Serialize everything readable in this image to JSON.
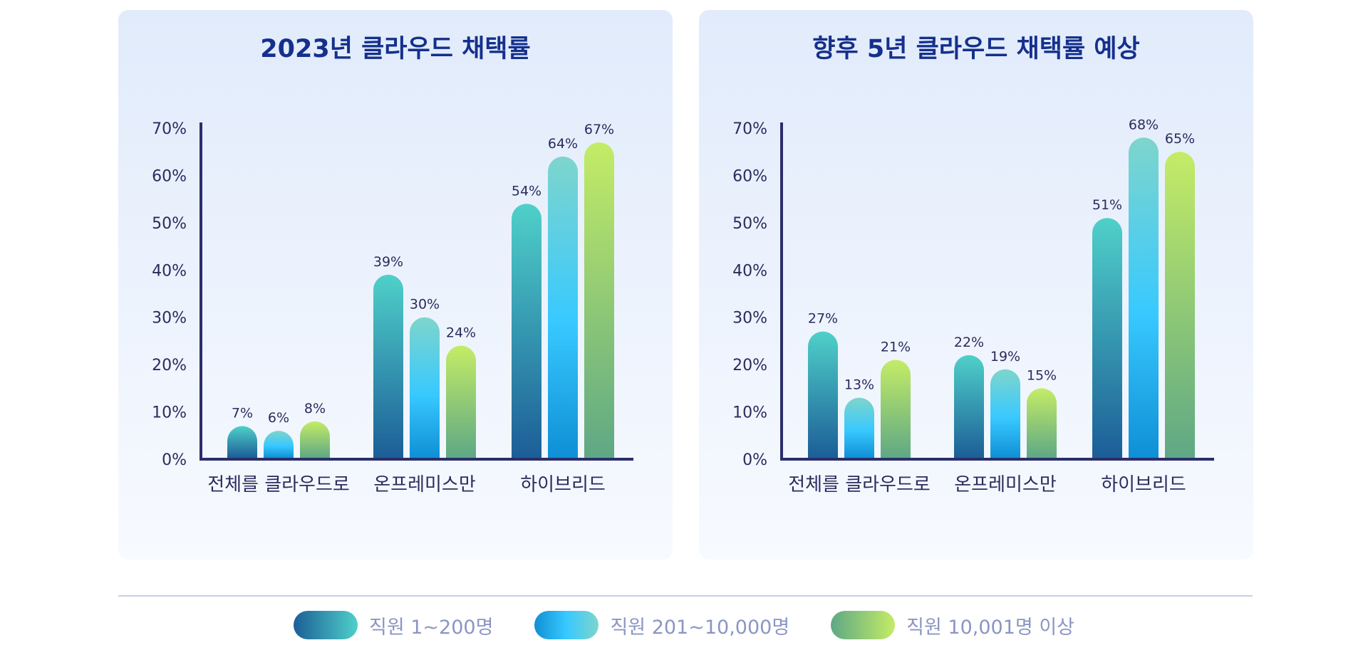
{
  "colors": {
    "s1": [
      "#1c5e97",
      "#4fd0c9"
    ],
    "s2": [
      "#0f8fd6",
      "#38c9ff",
      "#7ed5cc"
    ],
    "s3": [
      "#5ea885",
      "#c4ec66"
    ],
    "axis": "#2b2e6b",
    "title": "#15308c",
    "text": "#2a2c5c",
    "legend_text": "#8b95c4"
  },
  "legend": [
    {
      "label": "직원 1~200명"
    },
    {
      "label": "직원 201~10,000명"
    },
    {
      "label": "직원 10,001명 이상"
    }
  ],
  "chart_data": [
    {
      "type": "bar",
      "title": "2023년 클라우드 채택률",
      "categories": [
        "전체를 클라우드로",
        "온프레미스만",
        "하이브리드"
      ],
      "yticks": [
        "0%",
        "10%",
        "20%",
        "30%",
        "40%",
        "50%",
        "60%",
        "70%"
      ],
      "ylim": [
        0,
        70
      ],
      "grid": false,
      "legend_position": "bottom",
      "series": [
        {
          "values": [
            7,
            39,
            54
          ],
          "labels": [
            "7%",
            "39%",
            "54%"
          ]
        },
        {
          "values": [
            6,
            30,
            64
          ],
          "labels": [
            "6%",
            "30%",
            "64%"
          ]
        },
        {
          "values": [
            8,
            24,
            67
          ],
          "labels": [
            "8%",
            "24%",
            "67%"
          ]
        }
      ]
    },
    {
      "type": "bar",
      "title": "향후 5년 클라우드 채택률 예상",
      "categories": [
        "전체를 클라우드로",
        "온프레미스만",
        "하이브리드"
      ],
      "yticks": [
        "0%",
        "10%",
        "20%",
        "30%",
        "40%",
        "50%",
        "60%",
        "70%"
      ],
      "ylim": [
        0,
        70
      ],
      "grid": false,
      "legend_position": "bottom",
      "series": [
        {
          "values": [
            27,
            22,
            51
          ],
          "labels": [
            "27%",
            "22%",
            "51%"
          ]
        },
        {
          "values": [
            13,
            19,
            68
          ],
          "labels": [
            "13%",
            "19%",
            "68%"
          ]
        },
        {
          "values": [
            21,
            15,
            65
          ],
          "labels": [
            "21%",
            "15%",
            "65%"
          ]
        }
      ]
    }
  ]
}
